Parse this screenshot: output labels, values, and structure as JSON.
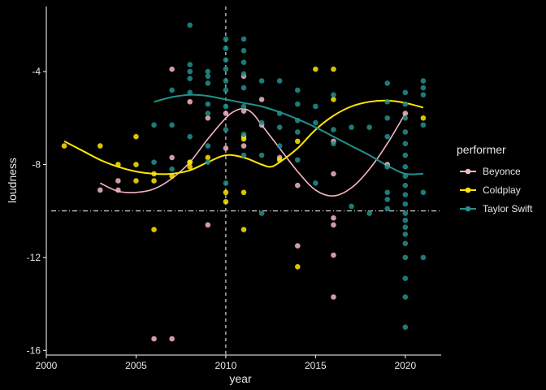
{
  "chart_data": {
    "type": "scatter",
    "title": "",
    "xlabel": "year",
    "ylabel": "loudness",
    "xlim": [
      2000,
      2022
    ],
    "ylim": [
      -16.2,
      -1.2
    ],
    "x_ticks": [
      2000,
      2005,
      2010,
      2015,
      2020
    ],
    "y_ticks": [
      -16,
      -12,
      -8,
      -4
    ],
    "grid": false,
    "background": "#000000",
    "text_color": "#e6e6e6",
    "legend": {
      "title": "performer",
      "placement": "right",
      "entries": [
        "Beyonce",
        "Coldplay",
        "Taylor Swift"
      ]
    },
    "reference_lines": {
      "vertical": {
        "x": 2010,
        "style": "dashed",
        "color": "#ffffff"
      },
      "horizontal": {
        "y": -10,
        "style": "dotdash",
        "color": "#ffffff"
      }
    },
    "series": [
      {
        "name": "Beyonce",
        "color": "#f4b6c2",
        "points": [
          [
            2003,
            -9.1
          ],
          [
            2004,
            -9.1
          ],
          [
            2004,
            -8.7
          ],
          [
            2006,
            -15.5
          ],
          [
            2007,
            -15.5
          ],
          [
            2007,
            -3.9
          ],
          [
            2007,
            -7.7
          ],
          [
            2008,
            -5.3
          ],
          [
            2008,
            -7.9
          ],
          [
            2009,
            -6.0
          ],
          [
            2009,
            -10.6
          ],
          [
            2010,
            -7.3
          ],
          [
            2010,
            -5.8
          ],
          [
            2011,
            -4.2
          ],
          [
            2011,
            -5.7
          ],
          [
            2011,
            -7.2
          ],
          [
            2012,
            -5.2
          ],
          [
            2012,
            -6.3
          ],
          [
            2013,
            -7.7
          ],
          [
            2014,
            -8.9
          ],
          [
            2014,
            -11.5
          ],
          [
            2016,
            -7.0
          ],
          [
            2016,
            -8.4
          ],
          [
            2016,
            -10.6
          ],
          [
            2016,
            -11.9
          ],
          [
            2016,
            -13.7
          ],
          [
            2016,
            -10.3
          ],
          [
            2019,
            -8.0
          ],
          [
            2020,
            -5.8
          ]
        ],
        "trend": [
          [
            2003,
            -8.8
          ],
          [
            2004,
            -9.15
          ],
          [
            2005,
            -9.2
          ],
          [
            2006,
            -9.05
          ],
          [
            2007,
            -8.6
          ],
          [
            2008,
            -7.9
          ],
          [
            2009,
            -6.9
          ],
          [
            2010,
            -6.0
          ],
          [
            2010.5,
            -5.7
          ],
          [
            2011,
            -5.6
          ],
          [
            2011.5,
            -5.8
          ],
          [
            2012,
            -6.3
          ],
          [
            2013,
            -7.3
          ],
          [
            2014,
            -8.3
          ],
          [
            2015,
            -9.1
          ],
          [
            2016,
            -9.35
          ],
          [
            2017,
            -9.0
          ],
          [
            2018,
            -8.2
          ],
          [
            2019,
            -7.1
          ],
          [
            2020,
            -5.8
          ]
        ]
      },
      {
        "name": "Coldplay",
        "color": "#ffe600",
        "points": [
          [
            2001,
            -7.2
          ],
          [
            2003,
            -7.2
          ],
          [
            2004,
            -8.0
          ],
          [
            2005,
            -6.8
          ],
          [
            2005,
            -8.0
          ],
          [
            2005,
            -8.7
          ],
          [
            2006,
            -8.4
          ],
          [
            2006,
            -8.7
          ],
          [
            2006,
            -10.8
          ],
          [
            2007,
            -8.5
          ],
          [
            2008,
            -7.9
          ],
          [
            2008,
            -8.1
          ],
          [
            2009,
            -7.7
          ],
          [
            2010,
            -9.2
          ],
          [
            2010,
            -9.6
          ],
          [
            2011,
            -6.8
          ],
          [
            2011,
            -6.9
          ],
          [
            2011,
            -9.2
          ],
          [
            2011,
            -10.8
          ],
          [
            2013,
            -7.8
          ],
          [
            2014,
            -7.0
          ],
          [
            2014,
            -12.4
          ],
          [
            2015,
            -3.9
          ],
          [
            2016,
            -3.9
          ],
          [
            2016,
            -5.2
          ],
          [
            2021,
            -6.0
          ]
        ],
        "trend": [
          [
            2001,
            -7.0
          ],
          [
            2002,
            -7.4
          ],
          [
            2003,
            -7.8
          ],
          [
            2004,
            -8.1
          ],
          [
            2005,
            -8.3
          ],
          [
            2006,
            -8.4
          ],
          [
            2007,
            -8.4
          ],
          [
            2008,
            -8.25
          ],
          [
            2009,
            -7.9
          ],
          [
            2010,
            -7.6
          ],
          [
            2011,
            -7.7
          ],
          [
            2012,
            -8.0
          ],
          [
            2012.5,
            -8.1
          ],
          [
            2013,
            -7.9
          ],
          [
            2014,
            -7.3
          ],
          [
            2015,
            -6.5
          ],
          [
            2016,
            -5.9
          ],
          [
            2017,
            -5.5
          ],
          [
            2018,
            -5.3
          ],
          [
            2019,
            -5.25
          ],
          [
            2020,
            -5.35
          ],
          [
            2021,
            -5.55
          ]
        ]
      },
      {
        "name": "Taylor Swift",
        "color": "#21918c",
        "points": [
          [
            2006,
            -6.3
          ],
          [
            2006,
            -7.9
          ],
          [
            2007,
            -4.8
          ],
          [
            2007,
            -6.3
          ],
          [
            2007,
            -8.2
          ],
          [
            2008,
            -2.0
          ],
          [
            2008,
            -3.7
          ],
          [
            2008,
            -4.0
          ],
          [
            2008,
            -4.3
          ],
          [
            2008,
            -4.9
          ],
          [
            2008,
            -6.8
          ],
          [
            2009,
            -4.0
          ],
          [
            2009,
            -4.2
          ],
          [
            2009,
            -4.5
          ],
          [
            2009,
            -5.4
          ],
          [
            2009,
            -5.8
          ],
          [
            2009,
            -7.2
          ],
          [
            2009,
            -7.9
          ],
          [
            2010,
            -2.6
          ],
          [
            2010,
            -3.0
          ],
          [
            2010,
            -3.5
          ],
          [
            2010,
            -3.9
          ],
          [
            2010,
            -4.4
          ],
          [
            2010,
            -4.8
          ],
          [
            2010,
            -5.5
          ],
          [
            2010,
            -6.5
          ],
          [
            2010,
            -8.8
          ],
          [
            2011,
            -2.6
          ],
          [
            2011,
            -3.1
          ],
          [
            2011,
            -3.6
          ],
          [
            2011,
            -4.1
          ],
          [
            2011,
            -4.7
          ],
          [
            2011,
            -5.5
          ],
          [
            2011,
            -6.7
          ],
          [
            2011,
            -7.6
          ],
          [
            2012,
            -4.4
          ],
          [
            2012,
            -6.2
          ],
          [
            2012,
            -7.6
          ],
          [
            2012,
            -10.1
          ],
          [
            2013,
            -4.4
          ],
          [
            2013,
            -5.8
          ],
          [
            2013,
            -6.4
          ],
          [
            2013,
            -7.2
          ],
          [
            2014,
            -4.8
          ],
          [
            2014,
            -5.4
          ],
          [
            2014,
            -6.1
          ],
          [
            2014,
            -6.6
          ],
          [
            2014,
            -7.8
          ],
          [
            2015,
            -5.5
          ],
          [
            2015,
            -6.2
          ],
          [
            2015,
            -8.8
          ],
          [
            2016,
            -5.0
          ],
          [
            2016,
            -6.5
          ],
          [
            2016,
            -7.1
          ],
          [
            2017,
            -6.4
          ],
          [
            2017,
            -9.8
          ],
          [
            2018,
            -6.4
          ],
          [
            2018,
            -10.1
          ],
          [
            2019,
            -4.5
          ],
          [
            2019,
            -5.3
          ],
          [
            2019,
            -6.0
          ],
          [
            2019,
            -6.8
          ],
          [
            2019,
            -8.1
          ],
          [
            2019,
            -9.2
          ],
          [
            2019,
            -9.5
          ],
          [
            2019,
            -9.9
          ],
          [
            2020,
            -4.9
          ],
          [
            2020,
            -5.4
          ],
          [
            2020,
            -6.0
          ],
          [
            2020,
            -6.6
          ],
          [
            2020,
            -7.1
          ],
          [
            2020,
            -7.6
          ],
          [
            2020,
            -8.1
          ],
          [
            2020,
            -8.5
          ],
          [
            2020,
            -8.9
          ],
          [
            2020,
            -9.3
          ],
          [
            2020,
            -9.7
          ],
          [
            2020,
            -10.1
          ],
          [
            2020,
            -10.4
          ],
          [
            2020,
            -10.7
          ],
          [
            2020,
            -11.0
          ],
          [
            2020,
            -11.4
          ],
          [
            2020,
            -12.0
          ],
          [
            2020,
            -12.9
          ],
          [
            2020,
            -13.7
          ],
          [
            2020,
            -15.0
          ],
          [
            2021,
            -4.4
          ],
          [
            2021,
            -4.7
          ],
          [
            2021,
            -5.0
          ],
          [
            2021,
            -6.3
          ],
          [
            2021,
            -9.2
          ],
          [
            2021,
            -12.0
          ]
        ],
        "trend": [
          [
            2006,
            -5.3
          ],
          [
            2007,
            -5.1
          ],
          [
            2008,
            -5.0
          ],
          [
            2009,
            -5.05
          ],
          [
            2010,
            -5.2
          ],
          [
            2011,
            -5.35
          ],
          [
            2012,
            -5.5
          ],
          [
            2013,
            -5.75
          ],
          [
            2014,
            -6.05
          ],
          [
            2015,
            -6.4
          ],
          [
            2016,
            -6.8
          ],
          [
            2017,
            -7.2
          ],
          [
            2018,
            -7.6
          ],
          [
            2019,
            -8.05
          ],
          [
            2020,
            -8.4
          ],
          [
            2021,
            -8.4
          ]
        ]
      }
    ]
  }
}
